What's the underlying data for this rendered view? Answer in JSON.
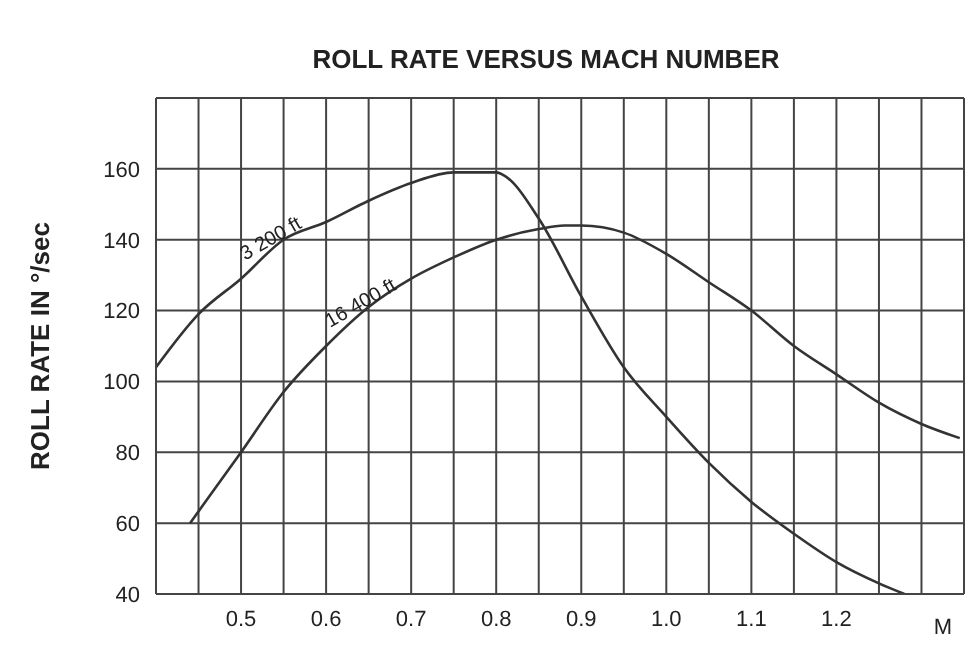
{
  "chart_data": {
    "type": "line",
    "title": "ROLL RATE VERSUS MACH NUMBER",
    "xlabel": "M",
    "ylabel": "ROLL RATE IN  °/sec",
    "series": [
      {
        "name": "3 200 ft",
        "color": "#333333",
        "x": [
          0.4,
          0.45,
          0.5,
          0.55,
          0.6,
          0.65,
          0.7,
          0.75,
          0.8,
          0.81,
          0.85,
          0.9,
          0.95,
          1.0,
          1.05,
          1.1,
          1.15,
          1.2,
          1.25,
          1.28
        ],
        "values": [
          104,
          119,
          129,
          140,
          145,
          151,
          156,
          159,
          159,
          158,
          146,
          124,
          104,
          90,
          77,
          66,
          57,
          49,
          43,
          40
        ]
      },
      {
        "name": "16 400 ft",
        "color": "#333333",
        "x": [
          0.44,
          0.5,
          0.55,
          0.6,
          0.65,
          0.7,
          0.75,
          0.8,
          0.85,
          0.88,
          0.9,
          0.95,
          1.0,
          1.05,
          1.1,
          1.15,
          1.2,
          1.25,
          1.3,
          1.345
        ],
        "values": [
          60,
          80,
          97,
          110,
          121,
          129,
          135,
          140,
          143,
          144,
          144,
          142,
          136,
          128,
          120,
          110,
          102,
          94,
          88,
          84
        ]
      }
    ],
    "xlim": [
      0.4,
      1.35
    ],
    "xticks": [
      {
        "value": 0.45,
        "label": null
      },
      0.5,
      {
        "value": 0.55,
        "label": null
      },
      0.6,
      {
        "value": 0.65,
        "label": null
      },
      0.7,
      {
        "value": 0.75,
        "label": null
      },
      0.8,
      {
        "value": 0.85,
        "label": null
      },
      0.9,
      {
        "value": 0.95,
        "label": null
      },
      {
        "value": 1.0,
        "label": "1.0"
      },
      {
        "value": 1.05,
        "label": null
      },
      1.1,
      {
        "value": 1.15,
        "label": null
      },
      1.2,
      {
        "value": 1.25,
        "label": null
      },
      {
        "value": 1.3,
        "label": null
      }
    ],
    "ylim": [
      40,
      180
    ],
    "yticks": [
      40,
      60,
      80,
      100,
      120,
      140,
      160,
      {
        "value": 180,
        "label": null
      }
    ],
    "grid": true,
    "marker": "none",
    "line_style": "solid"
  }
}
